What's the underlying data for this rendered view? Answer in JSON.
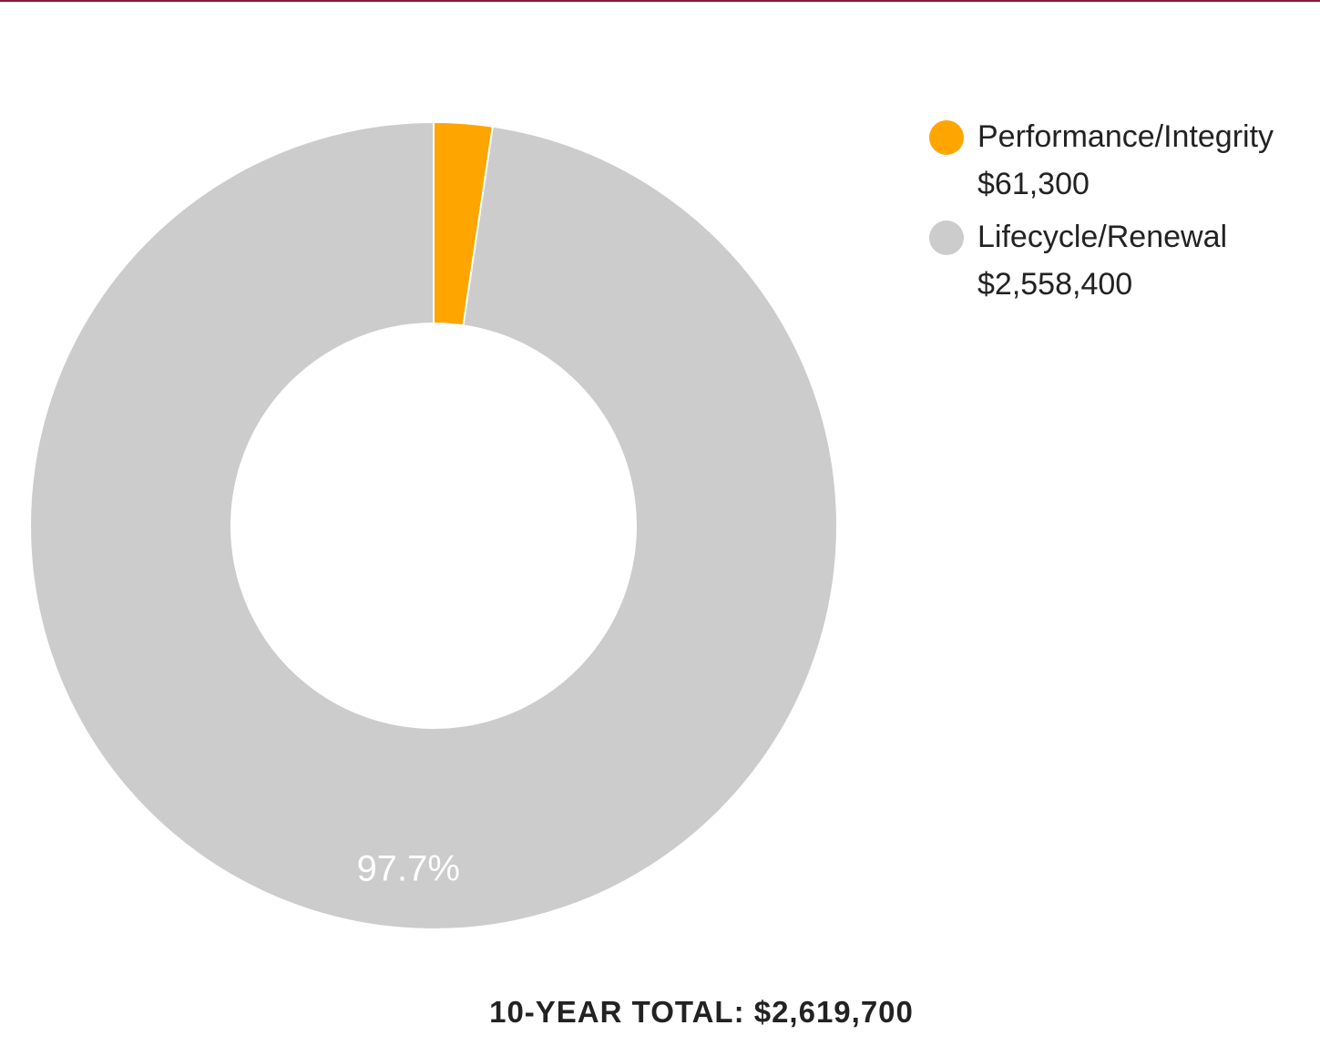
{
  "chart_data": {
    "type": "pie",
    "donut": true,
    "series": [
      {
        "name": "Performance/Integrity",
        "value": 61300,
        "value_label": "$61,300",
        "color": "#ffa500"
      },
      {
        "name": "Lifecycle/Renewal",
        "value": 2558400,
        "value_label": "$2,558,400",
        "color": "#cccccc"
      }
    ],
    "slice_labels": [
      "",
      "97.7%"
    ],
    "legend_placement": "top-right",
    "total_label": "10-YEAR TOTAL: $2,619,700"
  },
  "colors": {
    "top_border": "#8b1a3a",
    "slice_separator": "#ffffff",
    "slice_label_text": "#ffffff"
  }
}
